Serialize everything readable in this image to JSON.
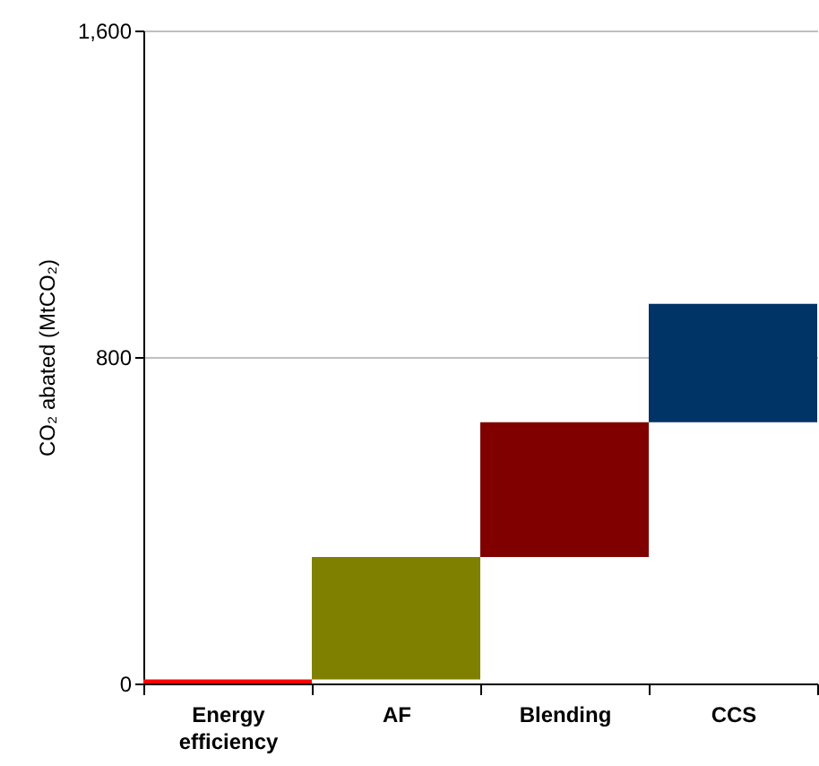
{
  "chart_data": {
    "type": "bar",
    "ylabel": "CO₂ abated (MtCO₂)",
    "categories": [
      "Energy efficiency",
      "AF",
      "Blending",
      "CCS"
    ],
    "values": [
      10,
      300,
      330,
      290
    ],
    "base": [
      0,
      10,
      310,
      640
    ],
    "colors": [
      "#ff0000",
      "#808000",
      "#800000",
      "#003366"
    ],
    "ylim": [
      0,
      1600
    ],
    "yticks": [
      0,
      800,
      {
        "value": 1600,
        "label": "1,600"
      }
    ],
    "grid": "y"
  }
}
